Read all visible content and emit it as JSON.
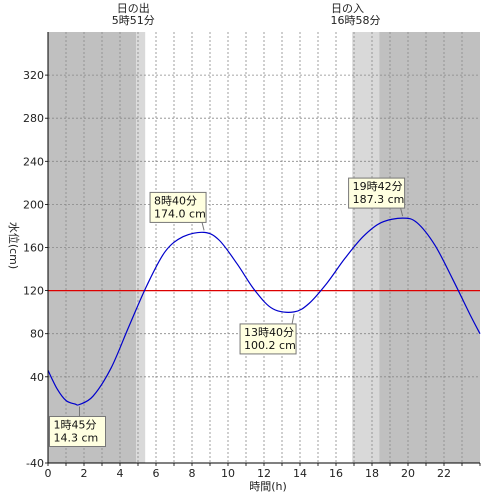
{
  "chart_data": {
    "type": "line",
    "title": "",
    "xlabel": "時間(h)",
    "ylabel": "水位(cm)",
    "xlim": [
      0,
      24
    ],
    "ylim": [
      -40,
      360
    ],
    "xticks": [
      0,
      2,
      4,
      6,
      8,
      10,
      12,
      14,
      16,
      18,
      20,
      22
    ],
    "yticks": [
      -40,
      40,
      80,
      120,
      160,
      200,
      240,
      280,
      320
    ],
    "grid": true,
    "series": [
      {
        "color": "#0000cc",
        "x": [
          0,
          0.5,
          1,
          1.5,
          1.75,
          2.5,
          3.5,
          4.5,
          5.5,
          6.5,
          7.5,
          8.67,
          9.5,
          10.5,
          11.5,
          12.5,
          13.67,
          14.5,
          15.5,
          16.5,
          17.5,
          18.5,
          19.7,
          20.5,
          21.5,
          22.5,
          23.5,
          24
        ],
        "y": [
          46,
          29,
          18,
          14.8,
          14.3,
          22,
          48,
          87,
          125,
          156,
          170,
          174.0,
          167,
          145,
          120,
          103,
          100.2,
          108,
          127,
          150,
          170,
          183,
          187.3,
          183,
          162,
          130,
          96,
          80
        ]
      }
    ],
    "reference_line": {
      "y": 120,
      "color": "#dd0000"
    },
    "sunrise": {
      "label_top": "日の出",
      "label_time": "5時51分",
      "hour": 5.85
    },
    "sunset": {
      "label_top": "日の入",
      "label_time": "16時58分",
      "hour": 16.97
    },
    "shading": {
      "night_color": "#c0c0c0",
      "twilight_color": "#d9d9d9",
      "day_color": "#ffffff",
      "morning_night_end": 4.9,
      "morning_twilight_end": 5.4,
      "evening_twilight_start": 16.9,
      "evening_night_start": 18.4
    },
    "annotations": [
      {
        "time": "1時45分",
        "value": "14.3 cm",
        "x": 1.75,
        "y": 14.3,
        "box": "below"
      },
      {
        "time": "8時40分",
        "value": "174.0 cm",
        "x": 8.67,
        "y": 174.0,
        "box": "above"
      },
      {
        "time": "13時40分",
        "value": "100.2 cm",
        "x": 13.67,
        "y": 100.2,
        "box": "below"
      },
      {
        "time": "19時42分",
        "value": "187.3 cm",
        "x": 19.7,
        "y": 187.3,
        "box": "above"
      }
    ]
  }
}
